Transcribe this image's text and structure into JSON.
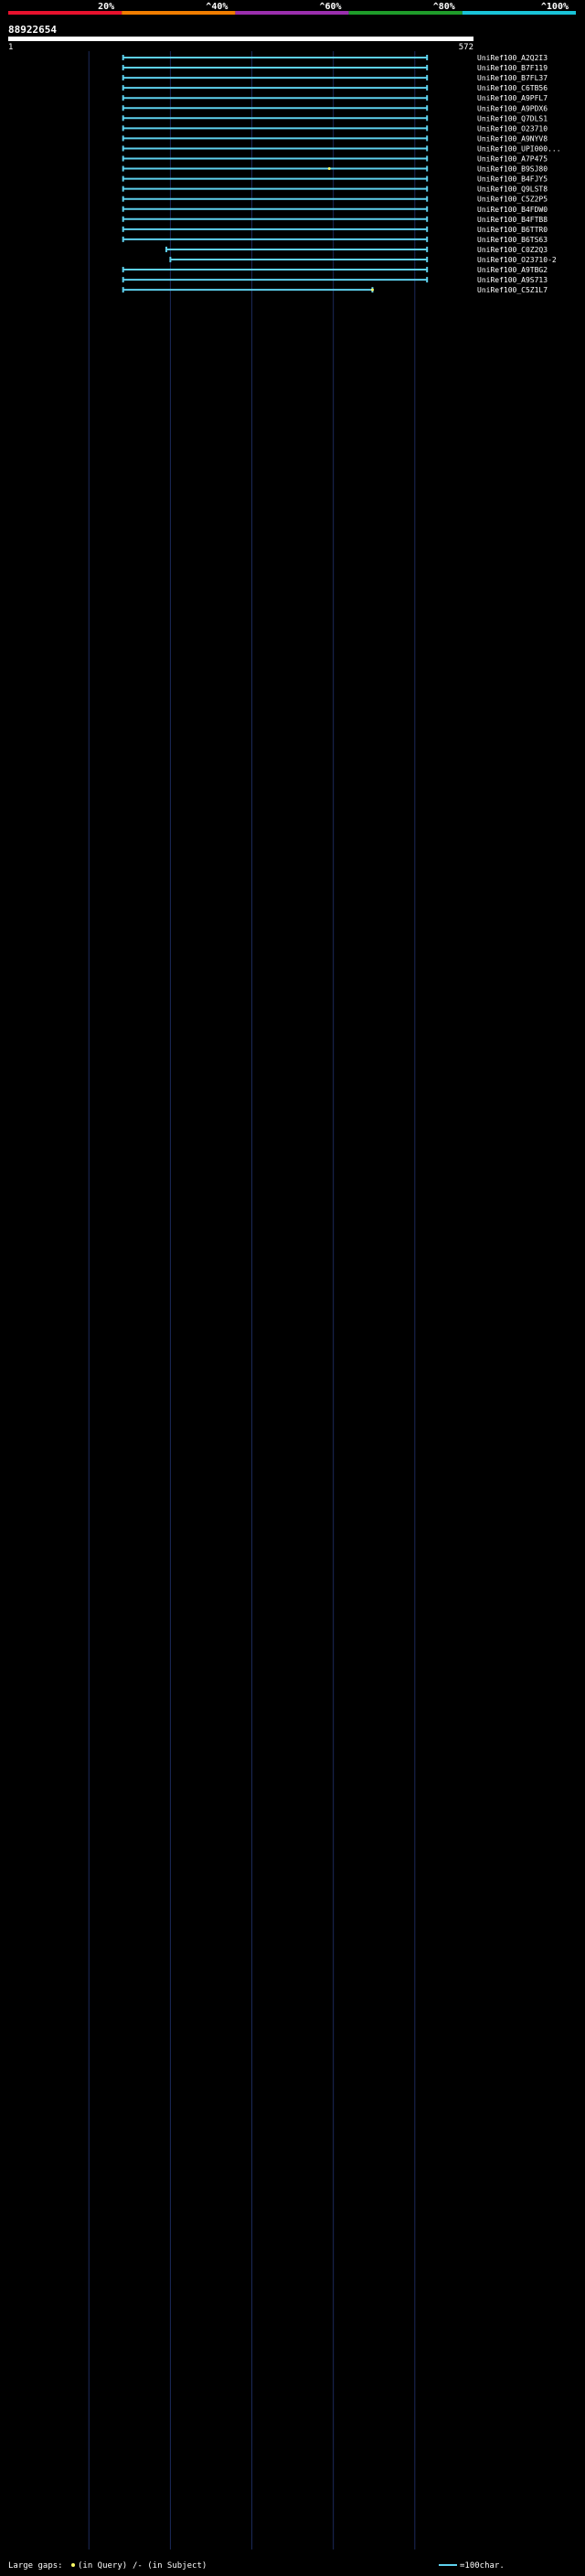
{
  "chart_data": {
    "type": "alignment_overview",
    "title": "88922654",
    "query_range": [
      "1",
      "572"
    ],
    "scale_labels": [
      "20%",
      "^40%",
      "^60%",
      "^80%",
      "^100%"
    ],
    "scale_colors": [
      "#e8112d",
      "#f07d00",
      "#9b2fae",
      "#1f9c2a",
      "#19c3d8"
    ],
    "query_length": 572,
    "footer": {
      "large_gaps_label": "Large gaps:",
      "in_query_label": "(in Query)",
      "in_subject_label": "/- (in Subject)",
      "scale_label": "=100char."
    },
    "hits": [
      {
        "id": "UniRef100_A2Q2I3",
        "start": 142,
        "end": 515,
        "identity": "high",
        "mark": null
      },
      {
        "id": "UniRef100_B7F119",
        "start": 142,
        "end": 515,
        "identity": "high",
        "mark": null
      },
      {
        "id": "UniRef100_B7FL37",
        "start": 142,
        "end": 515,
        "identity": "high",
        "mark": null
      },
      {
        "id": "UniRef100_C6TB56",
        "start": 142,
        "end": 515,
        "identity": "high",
        "mark": null
      },
      {
        "id": "UniRef100_A9PFL7",
        "start": 142,
        "end": 515,
        "identity": "high",
        "mark": null
      },
      {
        "id": "UniRef100_A9PDX6",
        "start": 142,
        "end": 515,
        "identity": "high",
        "mark": null
      },
      {
        "id": "UniRef100_Q7DLS1",
        "start": 142,
        "end": 515,
        "identity": "high",
        "mark": null
      },
      {
        "id": "UniRef100_O23710",
        "start": 142,
        "end": 515,
        "identity": "high",
        "mark": null
      },
      {
        "id": "UniRef100_A9NYV8",
        "start": 142,
        "end": 515,
        "identity": "high",
        "mark": null
      },
      {
        "id": "UniRef100_UPI000...",
        "start": 142,
        "end": 515,
        "identity": "high",
        "mark": null
      },
      {
        "id": "UniRef100_A7P475",
        "start": 142,
        "end": 515,
        "identity": "high",
        "mark": null
      },
      {
        "id": "UniRef100_B9SJ80",
        "start": 142,
        "end": 515,
        "identity": "high",
        "mark": 395
      },
      {
        "id": "UniRef100_B4FJY5",
        "start": 142,
        "end": 515,
        "identity": "high",
        "mark": null
      },
      {
        "id": "UniRef100_Q9LST8",
        "start": 142,
        "end": 515,
        "identity": "high",
        "mark": null
      },
      {
        "id": "UniRef100_C5Z2P5",
        "start": 142,
        "end": 515,
        "identity": "high",
        "mark": null
      },
      {
        "id": "UniRef100_B4FDW0",
        "start": 142,
        "end": 515,
        "identity": "high",
        "mark": null
      },
      {
        "id": "UniRef100_B4FTB8",
        "start": 142,
        "end": 515,
        "identity": "high",
        "mark": null
      },
      {
        "id": "UniRef100_B6TTR0",
        "start": 142,
        "end": 515,
        "identity": "high",
        "mark": null
      },
      {
        "id": "UniRef100_B6TS63",
        "start": 142,
        "end": 515,
        "identity": "high",
        "mark": null
      },
      {
        "id": "UniRef100_C0Z2Q3",
        "start": 195,
        "end": 515,
        "identity": "high",
        "mark": null
      },
      {
        "id": "UniRef100_O23710-2",
        "start": 200,
        "end": 515,
        "identity": "high",
        "mark": null
      },
      {
        "id": "UniRef100_A9TBG2",
        "start": 142,
        "end": 515,
        "identity": "high",
        "mark": null
      },
      {
        "id": "UniRef100_A9S713",
        "start": 142,
        "end": 515,
        "identity": "high",
        "mark": null
      },
      {
        "id": "UniRef100_C5Z1L7",
        "start": 142,
        "end": 448,
        "identity": "high",
        "mark": 448
      }
    ]
  }
}
